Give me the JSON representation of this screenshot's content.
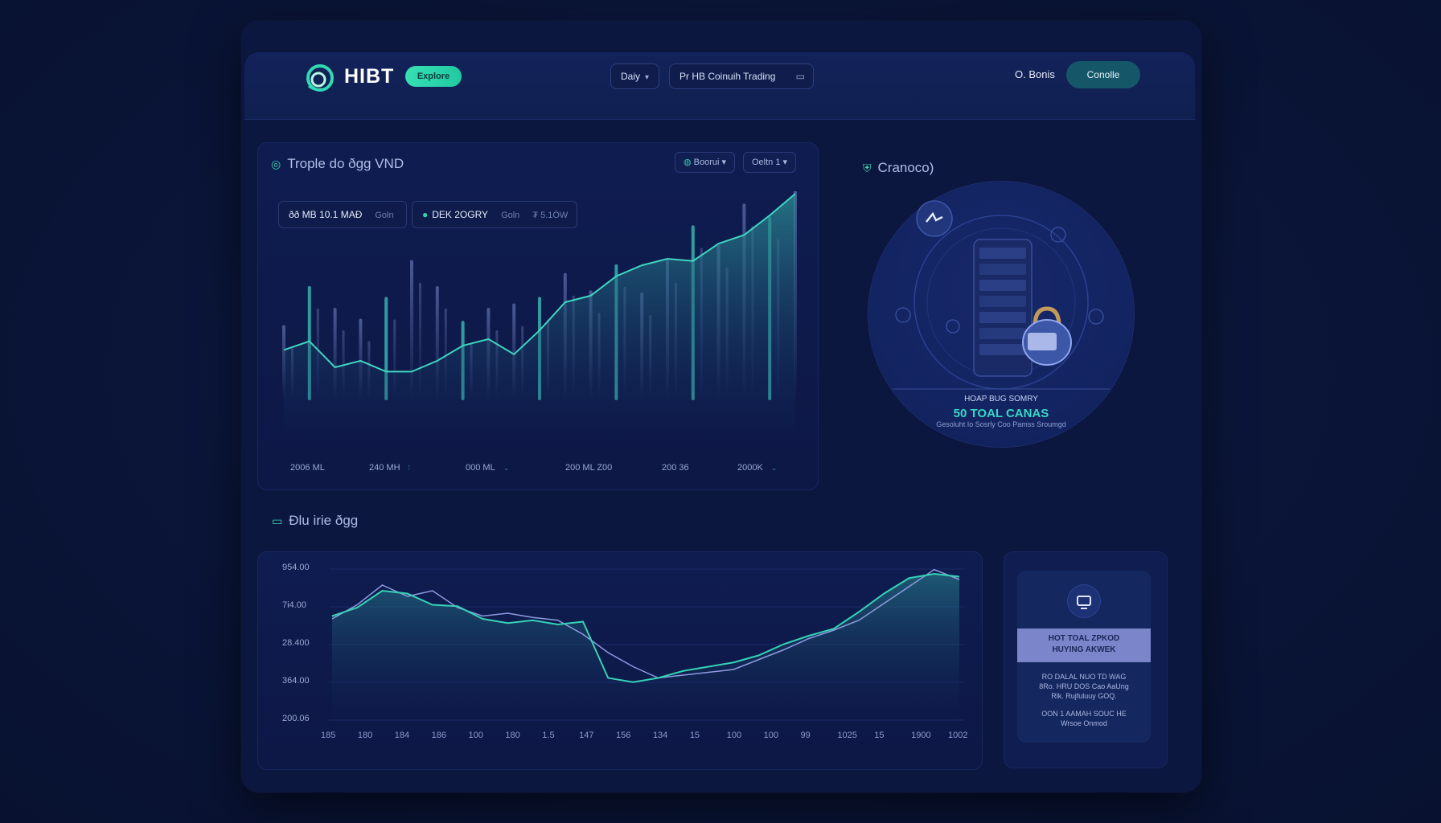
{
  "header": {
    "brand": "HIBT",
    "badge": "Explore",
    "timeframe": "Dаiy",
    "search_text": "Pr HB Coinuih Trading",
    "signin": "O. Bonis",
    "cta": "Conolle"
  },
  "main_chart": {
    "title": "Trople do ðgg VND",
    "select_1": "Boorui",
    "select_2": "Oeltn 1",
    "stat_1": "ðð MB 10.1 MAÐ",
    "stat_1_sub": "Goln",
    "stat_2": "DEK 2OGRY",
    "stat_2_sub": "Goln",
    "stat_3": "₮ 5.1ÓW",
    "x_ticks": [
      "2006 ML",
      "240 MH",
      "000 ML",
      "200 ML Z00",
      "200 36",
      "2000K"
    ]
  },
  "chart_data": [
    {
      "type": "area",
      "title": "Trople do ðgg VND",
      "x": [
        0,
        1,
        2,
        3,
        4,
        5,
        6,
        7,
        8,
        9,
        10,
        11,
        12,
        13,
        14,
        15,
        16,
        17,
        18,
        19,
        20
      ],
      "area_values": [
        38,
        42,
        30,
        33,
        28,
        28,
        33,
        40,
        43,
        36,
        47,
        60,
        63,
        72,
        77,
        80,
        79,
        87,
        91,
        100,
        110
      ],
      "bar_values": [
        42,
        60,
        50,
        45,
        55,
        72,
        60,
        44,
        50,
        52,
        55,
        66,
        58,
        70,
        57,
        72,
        88,
        79,
        98,
        92,
        105
      ]
    },
    {
      "type": "line",
      "title": "Ðlu irie ðgg",
      "y_tick_labels": [
        "954.00",
        "7i4.00",
        "28.400",
        "364.00",
        "200.06"
      ],
      "x_tick_labels": [
        "185",
        "180",
        "184",
        "186",
        "100",
        "180",
        "1.5",
        "147",
        "156",
        "134",
        "15",
        "100",
        "100",
        "99",
        "1025",
        "15",
        "1900",
        "1002"
      ],
      "series": [
        {
          "values": [
            66,
            72,
            84,
            82,
            74,
            73,
            64,
            61,
            63,
            60,
            62,
            22,
            19,
            22,
            27,
            30,
            33,
            38,
            46,
            52,
            57,
            69,
            82,
            93,
            96,
            94
          ]
        },
        {
          "values": [
            64,
            74,
            88,
            80,
            84,
            72,
            66,
            68,
            65,
            63,
            53,
            40,
            30,
            22,
            24,
            26,
            28,
            35,
            42,
            50,
            56,
            63,
            75,
            87,
            99,
            92
          ]
        }
      ]
    }
  ],
  "right_panel": {
    "title": "Cranoco)",
    "caption_small": "HOAP BUG SOMRY",
    "caption_big": "50 TOAL CANAS",
    "caption_note": "Gesoluht Io Sosrly Coo Pamss Sroumgd"
  },
  "bottom": {
    "title": "Ðlu irie ðgg"
  },
  "side_card": {
    "band_line_1": "HOT TOAL ZPKOD",
    "band_line_2": "HUYING AKWEK",
    "text_1": "RO DALAL NUO TD WAG",
    "text_2": "8Ro. HRU DOS Cao AaUng",
    "text_3": "Rlk. Rujfuluuy GOQ.",
    "text_4": "OON 1 AAMAH SOUC HE",
    "text_5": "Wrsoe Onmod"
  },
  "colors": {
    "accent": "#2fd6b0",
    "background": "#0a1538",
    "panel": "#0f1c50",
    "cta": "#155669"
  }
}
